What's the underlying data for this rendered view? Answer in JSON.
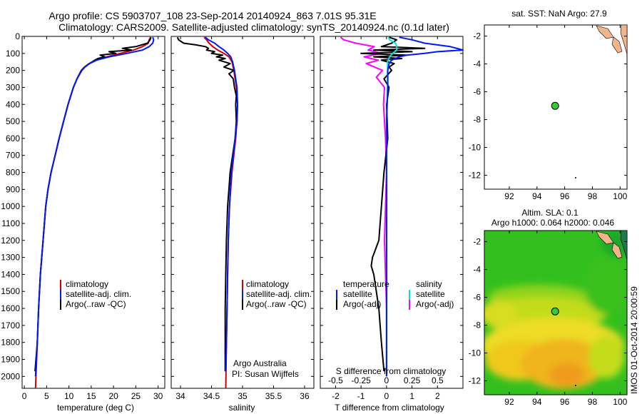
{
  "title": {
    "line1": "Argo profile: CS 5903707_108 23-Sep-2014 20140924_863 7.01S 95.31E",
    "line2": "Climatology: CARS2009. Satellite-adjusted climatology: synTS_20140924.nc (0.1d later)"
  },
  "colors": {
    "climatology": "#d00000",
    "satellite": "#0018ff",
    "argo": "#000000",
    "satellite_salinity": "#00e0e0",
    "argo_adj_salinity": "#ff00ff",
    "land": "#f2b48a",
    "marker": "#33cc33"
  },
  "depth_axis": {
    "ticks": [
      "0",
      "100",
      "200",
      "300",
      "400",
      "500",
      "600",
      "700",
      "800",
      "900",
      "1000",
      "1100",
      "1200",
      "1300",
      "1400",
      "1500",
      "1600",
      "1700",
      "1800",
      "1900",
      "2000"
    ],
    "ylim": [
      0,
      2070
    ]
  },
  "chart_data": [
    {
      "type": "line",
      "id": "temperature",
      "xlabel": "temperature (deg C)",
      "xlim": [
        -0.5,
        31.5
      ],
      "xticks": [
        "0",
        "5",
        "10",
        "15",
        "20",
        "25",
        "30"
      ],
      "legend": {
        "placement": "bottom",
        "entries": [
          "climatology",
          "satellite-adj. clim.",
          "Argo(..raw -QC)"
        ]
      },
      "series": [
        {
          "name": "climatology",
          "depth": [
            5,
            20,
            40,
            60,
            80,
            100,
            120,
            140,
            160,
            180,
            200,
            250,
            300,
            400,
            500,
            600,
            700,
            800,
            900,
            1000,
            1200,
            1400,
            1600,
            1800,
            2000,
            2070
          ],
          "values": [
            28.3,
            28.0,
            27.8,
            26.5,
            24.5,
            21.5,
            18.5,
            16.0,
            14.5,
            13.5,
            12.8,
            11.8,
            11.0,
            9.8,
            8.8,
            7.8,
            6.9,
            6.0,
            5.3,
            4.8,
            4.2,
            3.6,
            3.2,
            2.9,
            2.6,
            2.5
          ]
        },
        {
          "name": "satellite-adj. clim.",
          "depth": [
            5,
            20,
            40,
            60,
            80,
            100,
            120,
            140,
            160,
            180,
            200,
            250,
            300,
            400,
            500,
            600,
            700,
            800,
            900,
            1000,
            1200,
            1400,
            1600,
            1800,
            2000
          ],
          "values": [
            28.8,
            29.0,
            28.8,
            28.0,
            26.5,
            23.0,
            19.0,
            16.2,
            14.6,
            13.6,
            12.9,
            11.8,
            11.0,
            9.8,
            8.8,
            7.8,
            6.9,
            6.0,
            5.3,
            4.8,
            4.2,
            3.6,
            3.2,
            2.9,
            2.5
          ]
        },
        {
          "name": "Argo(..raw -QC)",
          "depth": [
            5,
            20,
            40,
            60,
            70,
            80,
            90,
            100,
            110,
            120,
            130,
            140,
            160,
            180,
            200,
            250,
            300,
            400,
            500,
            600,
            700,
            800,
            900,
            1000,
            1200,
            1400,
            1600,
            1800,
            1970
          ],
          "values": [
            28.4,
            28.2,
            27.6,
            25.0,
            22.0,
            24.0,
            19.0,
            20.5,
            17.0,
            18.0,
            16.5,
            15.8,
            14.6,
            13.5,
            12.8,
            11.8,
            11.0,
            9.8,
            8.8,
            7.8,
            6.9,
            6.0,
            5.3,
            4.8,
            4.2,
            3.6,
            3.2,
            2.9,
            2.4
          ]
        }
      ]
    },
    {
      "type": "line",
      "id": "salinity",
      "xlabel": "salinity",
      "xlim": [
        33.85,
        36.15
      ],
      "xticks": [
        "34",
        "34.5",
        "35",
        "35.5",
        "36"
      ],
      "legend": {
        "placement": "bottom-right",
        "entries": [
          "climatology",
          "satellite-adj. clim.",
          "Argo(..raw -QC)"
        ]
      },
      "annotation": {
        "line1": "Argo Australia",
        "line2": "PI: Susan Wijffels"
      },
      "series": [
        {
          "name": "climatology",
          "depth": [
            5,
            20,
            40,
            60,
            80,
            100,
            120,
            150,
            200,
            250,
            300,
            400,
            500,
            600,
            700,
            800,
            1000,
            1200,
            1400,
            1600,
            1800,
            2070
          ],
          "values": [
            34.38,
            34.42,
            34.46,
            34.52,
            34.6,
            34.7,
            34.78,
            34.83,
            34.86,
            34.88,
            34.9,
            34.92,
            34.91,
            34.89,
            34.86,
            34.83,
            34.79,
            34.77,
            34.76,
            34.75,
            34.74,
            34.73
          ]
        },
        {
          "name": "satellite-adj. clim.",
          "depth": [
            5,
            20,
            40,
            60,
            80,
            100,
            120,
            150,
            200,
            250,
            300,
            400,
            500,
            600,
            700,
            800,
            1000,
            1200,
            1400,
            1600,
            1800,
            1970
          ],
          "values": [
            34.4,
            34.45,
            34.55,
            34.62,
            34.7,
            34.76,
            34.81,
            34.84,
            34.87,
            34.89,
            34.91,
            34.92,
            34.91,
            34.88,
            34.85,
            34.82,
            34.79,
            34.77,
            34.76,
            34.75,
            34.74,
            34.73
          ]
        },
        {
          "name": "Argo(..raw -QC)",
          "depth": [
            5,
            20,
            40,
            50,
            60,
            70,
            80,
            90,
            100,
            110,
            120,
            130,
            140,
            160,
            180,
            200,
            220,
            250,
            300,
            350,
            400,
            500,
            600,
            700,
            800,
            900,
            1000,
            1200,
            1400,
            1600,
            1800,
            1970
          ],
          "values": [
            33.95,
            33.97,
            34.05,
            34.25,
            34.4,
            34.45,
            34.42,
            34.55,
            34.5,
            34.68,
            34.58,
            34.72,
            34.62,
            34.8,
            34.7,
            34.86,
            34.78,
            34.85,
            34.87,
            34.9,
            34.89,
            34.9,
            34.88,
            34.84,
            34.8,
            34.78,
            34.76,
            34.74,
            34.73,
            34.72,
            34.72,
            34.72
          ]
        }
      ]
    },
    {
      "type": "line",
      "id": "difference",
      "xlabel": "T difference from climatology",
      "xlabel_top": "S difference from climatology",
      "xlim": [
        -2.6,
        3.0
      ],
      "xticks": [
        "-2",
        "-1",
        "0",
        "1",
        "2"
      ],
      "xticks_salinity": [
        "-0.5",
        "-0.25",
        "0",
        "0.25",
        "0.5"
      ],
      "legend": {
        "placement": "bottom",
        "temperature_header": "temperature",
        "salinity_header": "salinity",
        "entries": [
          "satellite",
          "Argo(-adj)",
          "satellite",
          "Argo(-adj)"
        ]
      },
      "series": [
        {
          "name": "temperature satellite",
          "depth": [
            5,
            20,
            40,
            60,
            80,
            90,
            100,
            110,
            120,
            140,
            160,
            200,
            300,
            500,
            800,
            1200,
            1600,
            2000
          ],
          "values": [
            0.5,
            1.0,
            1.5,
            2.5,
            3.0,
            2.0,
            1.5,
            0.8,
            0.5,
            0.2,
            0.1,
            0.05,
            0.05,
            0.0,
            0.0,
            0.0,
            0.0,
            0.0
          ]
        },
        {
          "name": "temperature Argo(-adj)",
          "depth": [
            5,
            20,
            40,
            60,
            70,
            80,
            90,
            100,
            110,
            120,
            130,
            140,
            160,
            180,
            200,
            250,
            300,
            400,
            600,
            800,
            1000,
            1200,
            1300,
            1350,
            1400,
            1600,
            1800,
            1970
          ],
          "values": [
            0.1,
            0.4,
            0.2,
            -0.2,
            1.5,
            -0.5,
            1.0,
            -1.0,
            0.8,
            -0.5,
            0.6,
            -0.2,
            0.3,
            0.1,
            0.2,
            -0.1,
            0.1,
            0.0,
            0.05,
            -0.1,
            -0.2,
            -0.3,
            -0.55,
            -0.6,
            -0.5,
            -0.3,
            -0.2,
            -0.1
          ]
        },
        {
          "name": "salinity satellite",
          "depth": [
            5,
            20,
            40,
            60,
            80,
            100,
            120,
            150,
            200,
            300,
            500,
            800,
            1200,
            1600,
            2000
          ],
          "values": [
            0.02,
            0.03,
            0.09,
            0.1,
            0.1,
            0.06,
            0.03,
            0.01,
            0.01,
            0.01,
            0.0,
            0.0,
            0.0,
            0.0,
            0.0
          ]
        },
        {
          "name": "salinity Argo(-adj)",
          "depth": [
            5,
            20,
            40,
            60,
            80,
            100,
            120,
            140,
            160,
            200,
            240,
            300,
            400,
            500,
            600,
            800,
            1000,
            1200,
            1400,
            1600,
            1800,
            1970
          ],
          "values": [
            -0.45,
            -0.42,
            -0.3,
            -0.12,
            -0.18,
            -0.05,
            -0.22,
            -0.08,
            -0.2,
            -0.04,
            -0.1,
            -0.02,
            -0.03,
            -0.02,
            -0.01,
            0.0,
            -0.01,
            -0.02,
            -0.01,
            0.0,
            0.0,
            0.0
          ]
        }
      ]
    },
    {
      "type": "scatter",
      "id": "sst_map",
      "title": "sat. SST: NaN Argo: 27.9",
      "xlim": [
        90.2,
        100.5
      ],
      "ylim": [
        -13,
        -1.2
      ],
      "xticks": [
        "92",
        "94",
        "96",
        "98",
        "100"
      ],
      "yticks": [
        "-2",
        "-4",
        "-6",
        "-8",
        "-10",
        "-12"
      ],
      "points": [
        {
          "x": 95.31,
          "y": -7.01
        }
      ]
    },
    {
      "type": "heatmap",
      "id": "sla_map",
      "title_line1": "Altim. SLA: 0.1",
      "title_line2": "Argo h1000: 0.064 h2000: 0.046",
      "xlim": [
        90.2,
        100.5
      ],
      "ylim": [
        -13,
        -1.2
      ],
      "xticks": [
        "92",
        "94",
        "96",
        "98",
        "100"
      ],
      "yticks": [
        "-2",
        "-4",
        "-6",
        "-8",
        "-10",
        "-12"
      ],
      "points": [
        {
          "x": 95.31,
          "y": -7.01
        }
      ]
    }
  ],
  "footer": {
    "stamp": "IMOS 01-Oct-2014 20:00:59"
  }
}
